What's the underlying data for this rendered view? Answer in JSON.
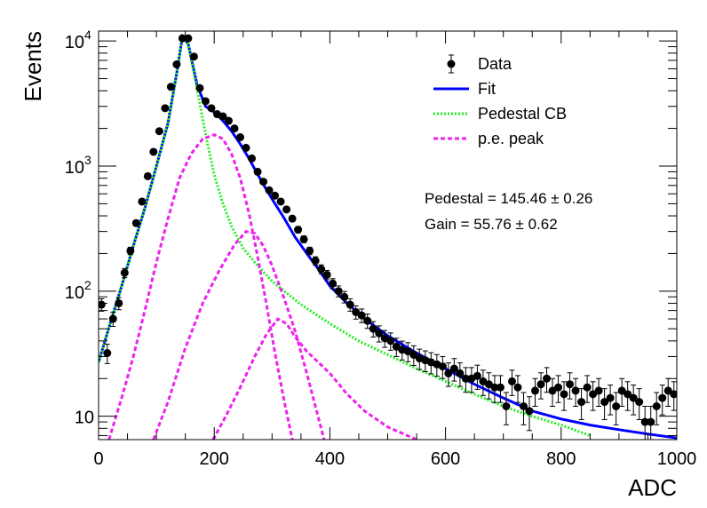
{
  "chart_data": {
    "type": "scatter",
    "title": "",
    "xlabel": "ADC",
    "ylabel": "Events",
    "xlim": [
      0,
      1000
    ],
    "ylim": [
      6.5,
      12000
    ],
    "y_scale": "log",
    "x_ticks": [
      0,
      200,
      400,
      600,
      800,
      1000
    ],
    "x_tick_labels": [
      "0",
      "200",
      "400",
      "600",
      "800",
      "1000"
    ],
    "y_major_ticks": [
      10,
      100,
      1000,
      10000
    ],
    "y_tick_labels": [
      {
        "base": "10",
        "exp": ""
      },
      {
        "base": "10",
        "exp": "2"
      },
      {
        "base": "10",
        "exp": "3"
      },
      {
        "base": "10",
        "exp": "4"
      }
    ],
    "grid": false,
    "legend_position": "top-right",
    "legend": [
      {
        "label": "Data",
        "style": "marker",
        "color": "#000000"
      },
      {
        "label": "Fit",
        "style": "solid",
        "color": "#0000ff"
      },
      {
        "label": "Pedestal CB",
        "style": "dotted",
        "color": "#22ee22"
      },
      {
        "label": "p.e. peak",
        "style": "dashed",
        "color": "#ee22ee"
      }
    ],
    "annotations": [
      {
        "label": "Pedestal = 145.46",
        "pm": "±",
        "value": "0.26"
      },
      {
        "label": "Gain = 55.76",
        "pm": "±",
        "value": "0.62"
      }
    ],
    "data_series": {
      "name": "Data",
      "points": [
        [
          5,
          78
        ],
        [
          15,
          32
        ],
        [
          25,
          60
        ],
        [
          35,
          80
        ],
        [
          45,
          140
        ],
        [
          55,
          210
        ],
        [
          65,
          350
        ],
        [
          75,
          520
        ],
        [
          85,
          830
        ],
        [
          95,
          1300
        ],
        [
          105,
          1900
        ],
        [
          115,
          2900
        ],
        [
          125,
          4300
        ],
        [
          135,
          6500
        ],
        [
          145,
          10500
        ],
        [
          155,
          10500
        ],
        [
          165,
          7500
        ],
        [
          175,
          4200
        ],
        [
          185,
          3300
        ],
        [
          195,
          2900
        ],
        [
          205,
          2600
        ],
        [
          215,
          2500
        ],
        [
          225,
          2300
        ],
        [
          235,
          2000
        ],
        [
          245,
          1700
        ],
        [
          255,
          1400
        ],
        [
          265,
          1150
        ],
        [
          275,
          900
        ],
        [
          285,
          750
        ],
        [
          295,
          640
        ],
        [
          305,
          580
        ],
        [
          315,
          520
        ],
        [
          325,
          450
        ],
        [
          335,
          380
        ],
        [
          345,
          310
        ],
        [
          355,
          260
        ],
        [
          365,
          210
        ],
        [
          375,
          175
        ],
        [
          385,
          150
        ],
        [
          395,
          135
        ],
        [
          405,
          115
        ],
        [
          415,
          100
        ],
        [
          425,
          90
        ],
        [
          435,
          78
        ],
        [
          445,
          68
        ],
        [
          455,
          64
        ],
        [
          465,
          58
        ],
        [
          475,
          50
        ],
        [
          485,
          46
        ],
        [
          495,
          42
        ],
        [
          505,
          40
        ],
        [
          515,
          36
        ],
        [
          525,
          34
        ],
        [
          535,
          33
        ],
        [
          545,
          31
        ],
        [
          555,
          29
        ],
        [
          565,
          28
        ],
        [
          575,
          27
        ],
        [
          585,
          26
        ],
        [
          595,
          25
        ],
        [
          605,
          22
        ],
        [
          615,
          24
        ],
        [
          625,
          22
        ],
        [
          635,
          20
        ],
        [
          645,
          20
        ],
        [
          655,
          21
        ],
        [
          665,
          19
        ],
        [
          675,
          18
        ],
        [
          685,
          17
        ],
        [
          695,
          17
        ],
        [
          705,
          12
        ],
        [
          715,
          19
        ],
        [
          725,
          17
        ],
        [
          735,
          12
        ],
        [
          745,
          11
        ],
        [
          755,
          16
        ],
        [
          765,
          18
        ],
        [
          775,
          20
        ],
        [
          785,
          16
        ],
        [
          795,
          17
        ],
        [
          805,
          15
        ],
        [
          815,
          18
        ],
        [
          825,
          16
        ],
        [
          835,
          13
        ],
        [
          845,
          17
        ],
        [
          855,
          15
        ],
        [
          865,
          16
        ],
        [
          875,
          13
        ],
        [
          885,
          14
        ],
        [
          895,
          12
        ],
        [
          905,
          16
        ],
        [
          915,
          15
        ],
        [
          925,
          14
        ],
        [
          935,
          13
        ],
        [
          945,
          9
        ],
        [
          955,
          9
        ],
        [
          965,
          12
        ],
        [
          975,
          14
        ],
        [
          985,
          16
        ],
        [
          995,
          15
        ]
      ]
    },
    "curves": [
      {
        "name": "Fit",
        "color": "#0000ff",
        "style": "solid",
        "points": [
          [
            0,
            27
          ],
          [
            20,
            55
          ],
          [
            40,
            110
          ],
          [
            60,
            230
          ],
          [
            80,
            460
          ],
          [
            100,
            1000
          ],
          [
            120,
            2200
          ],
          [
            135,
            5500
          ],
          [
            145,
            10800
          ],
          [
            155,
            9500
          ],
          [
            170,
            4500
          ],
          [
            185,
            3000
          ],
          [
            200,
            2700
          ],
          [
            215,
            2300
          ],
          [
            230,
            1900
          ],
          [
            245,
            1500
          ],
          [
            260,
            1150
          ],
          [
            275,
            860
          ],
          [
            290,
            650
          ],
          [
            305,
            500
          ],
          [
            320,
            390
          ],
          [
            340,
            270
          ],
          [
            360,
            200
          ],
          [
            380,
            150
          ],
          [
            400,
            110
          ],
          [
            430,
            80
          ],
          [
            460,
            60
          ],
          [
            500,
            44
          ],
          [
            550,
            32
          ],
          [
            600,
            24
          ],
          [
            650,
            18
          ],
          [
            700,
            14
          ],
          [
            750,
            11
          ],
          [
            800,
            9.5
          ],
          [
            850,
            8.5
          ],
          [
            900,
            7.8
          ],
          [
            950,
            7.2
          ],
          [
            1000,
            6.7
          ]
        ]
      },
      {
        "name": "Pedestal CB",
        "color": "#22ee22",
        "style": "dotted",
        "points": [
          [
            0,
            27
          ],
          [
            20,
            55
          ],
          [
            40,
            110
          ],
          [
            60,
            230
          ],
          [
            80,
            460
          ],
          [
            100,
            1000
          ],
          [
            120,
            2200
          ],
          [
            135,
            5500
          ],
          [
            145,
            10800
          ],
          [
            155,
            9500
          ],
          [
            170,
            4200
          ],
          [
            185,
            1800
          ],
          [
            200,
            850
          ],
          [
            215,
            500
          ],
          [
            230,
            330
          ],
          [
            250,
            220
          ],
          [
            275,
            160
          ],
          [
            300,
            120
          ],
          [
            350,
            78
          ],
          [
            400,
            55
          ],
          [
            450,
            40
          ],
          [
            500,
            31
          ],
          [
            550,
            24
          ],
          [
            600,
            19
          ],
          [
            650,
            15
          ],
          [
            700,
            12
          ],
          [
            750,
            10
          ],
          [
            800,
            8.5
          ],
          [
            850,
            7.0
          ]
        ]
      },
      {
        "name": "p.e. peak 1",
        "color": "#ee22ee",
        "style": "dashed",
        "points": [
          [
            18,
            6.5
          ],
          [
            40,
            14
          ],
          [
            60,
            30
          ],
          [
            80,
            70
          ],
          [
            100,
            170
          ],
          [
            120,
            380
          ],
          [
            140,
            800
          ],
          [
            160,
            1250
          ],
          [
            180,
            1650
          ],
          [
            200,
            1780
          ],
          [
            215,
            1650
          ],
          [
            230,
            1250
          ],
          [
            245,
            800
          ],
          [
            260,
            420
          ],
          [
            275,
            190
          ],
          [
            290,
            80
          ],
          [
            305,
            32
          ],
          [
            320,
            14
          ],
          [
            335,
            6.5
          ]
        ]
      },
      {
        "name": "p.e. peak 2",
        "color": "#ee22ee",
        "style": "dashed",
        "points": [
          [
            95,
            6.5
          ],
          [
            120,
            13
          ],
          [
            150,
            35
          ],
          [
            180,
            80
          ],
          [
            210,
            150
          ],
          [
            235,
            235
          ],
          [
            255,
            300
          ],
          [
            270,
            290
          ],
          [
            285,
            230
          ],
          [
            300,
            160
          ],
          [
            320,
            90
          ],
          [
            340,
            48
          ],
          [
            360,
            22
          ],
          [
            375,
            12
          ],
          [
            390,
            6.5
          ]
        ]
      },
      {
        "name": "p.e. peak 3",
        "color": "#ee22ee",
        "style": "dashed",
        "points": [
          [
            198,
            6.5
          ],
          [
            220,
            10
          ],
          [
            245,
            17
          ],
          [
            270,
            30
          ],
          [
            290,
            45
          ],
          [
            310,
            60
          ],
          [
            325,
            55
          ],
          [
            340,
            43
          ],
          [
            360,
            33
          ],
          [
            380,
            27
          ],
          [
            400,
            22
          ],
          [
            430,
            15
          ],
          [
            460,
            11
          ],
          [
            500,
            8.2
          ],
          [
            550,
            6.5
          ]
        ]
      }
    ]
  }
}
